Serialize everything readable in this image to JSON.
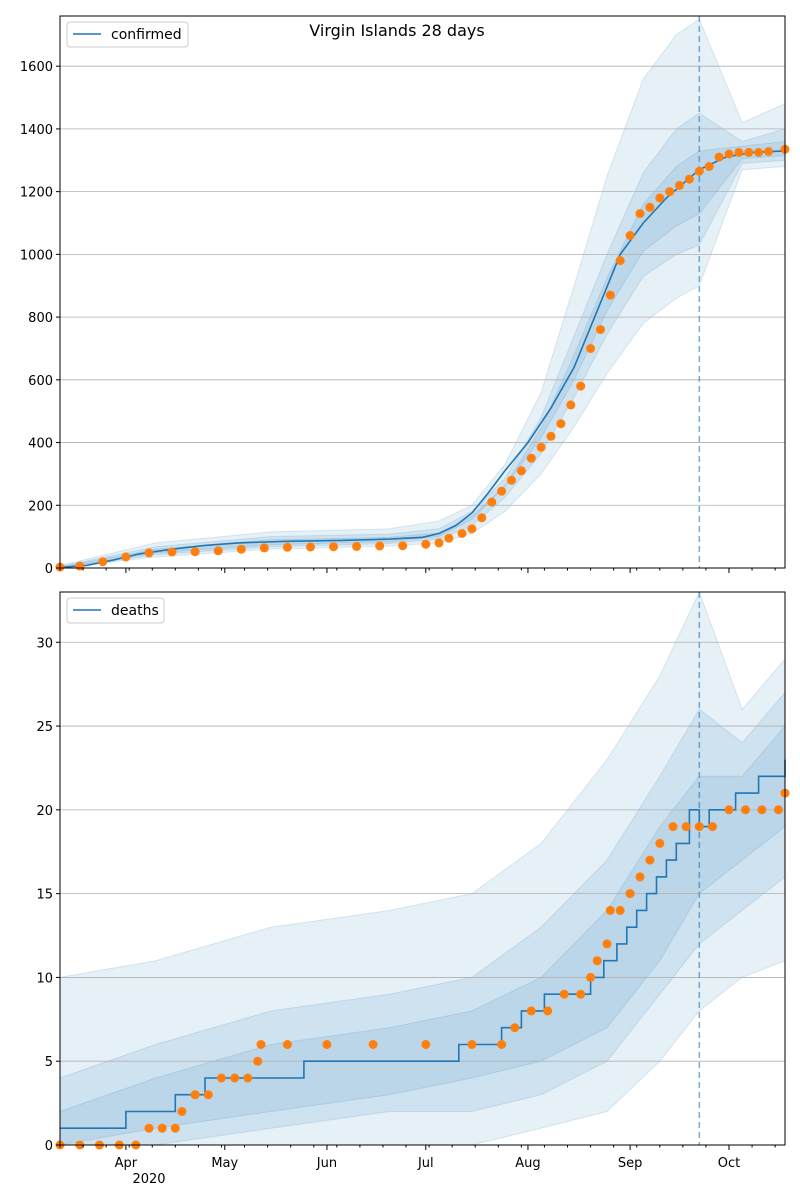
{
  "figure": {
    "title": "Virgin Islands 28 days",
    "x_tick_labels": [
      "Apr",
      "May",
      "Jun",
      "Jul",
      "Aug",
      "Sep",
      "Oct"
    ],
    "year_label": "2020"
  },
  "colors": {
    "line": "#1f77b4",
    "points": "#ff7f0e",
    "band": "#1f77b4",
    "grid": "#b0b0b0",
    "forecast_marker": "#1f77b4"
  },
  "chart_data": [
    {
      "type": "line",
      "legend_label": "confirmed",
      "legend_position": "upper left",
      "x_range": [
        "2020-03-12",
        "2020-10-18"
      ],
      "ylim": [
        0,
        1760
      ],
      "y_ticks": [
        0,
        200,
        400,
        600,
        800,
        1000,
        1200,
        1400,
        1600
      ],
      "grid": "y",
      "forecast_start": "2020-09-22",
      "series": [
        {
          "name": "confirmed",
          "kind": "model-median",
          "x": [
            "2020-03-12",
            "2020-03-20",
            "2020-03-28",
            "2020-04-05",
            "2020-04-15",
            "2020-04-25",
            "2020-05-05",
            "2020-05-20",
            "2020-06-05",
            "2020-06-20",
            "2020-06-30",
            "2020-07-05",
            "2020-07-10",
            "2020-07-15",
            "2020-07-20",
            "2020-07-25",
            "2020-08-01",
            "2020-08-08",
            "2020-08-15",
            "2020-08-22",
            "2020-08-29",
            "2020-09-05",
            "2020-09-12",
            "2020-09-22",
            "2020-09-30",
            "2020-10-08",
            "2020-10-18"
          ],
          "y": [
            2,
            8,
            25,
            45,
            60,
            72,
            80,
            85,
            88,
            92,
            98,
            110,
            135,
            175,
            240,
            310,
            400,
            510,
            640,
            820,
            1000,
            1100,
            1180,
            1270,
            1310,
            1325,
            1330
          ]
        },
        {
          "name": "observed",
          "kind": "points",
          "x": [
            "2020-03-12",
            "2020-03-18",
            "2020-03-25",
            "2020-04-01",
            "2020-04-08",
            "2020-04-15",
            "2020-04-22",
            "2020-04-29",
            "2020-05-06",
            "2020-05-13",
            "2020-05-20",
            "2020-05-27",
            "2020-06-03",
            "2020-06-10",
            "2020-06-17",
            "2020-06-24",
            "2020-07-01",
            "2020-07-05",
            "2020-07-08",
            "2020-07-12",
            "2020-07-15",
            "2020-07-18",
            "2020-07-21",
            "2020-07-24",
            "2020-07-27",
            "2020-07-30",
            "2020-08-02",
            "2020-08-05",
            "2020-08-08",
            "2020-08-11",
            "2020-08-14",
            "2020-08-17",
            "2020-08-20",
            "2020-08-23",
            "2020-08-26",
            "2020-08-29",
            "2020-09-01",
            "2020-09-04",
            "2020-09-07",
            "2020-09-10",
            "2020-09-13",
            "2020-09-16",
            "2020-09-19",
            "2020-09-22",
            "2020-09-25",
            "2020-09-28",
            "2020-10-01",
            "2020-10-04",
            "2020-10-07",
            "2020-10-10",
            "2020-10-13",
            "2020-10-18"
          ],
          "y": [
            3,
            6,
            20,
            35,
            48,
            51,
            52,
            55,
            60,
            64,
            66,
            67,
            68,
            69,
            70,
            71,
            76,
            80,
            95,
            110,
            125,
            160,
            210,
            245,
            280,
            310,
            350,
            385,
            420,
            460,
            520,
            580,
            700,
            760,
            870,
            980,
            1060,
            1130,
            1150,
            1180,
            1200,
            1220,
            1240,
            1265,
            1280,
            1310,
            1320,
            1325,
            1325,
            1325,
            1328,
            1335
          ]
        }
      ],
      "bands": [
        {
          "level": "outer",
          "x": [
            "2020-03-12",
            "2020-04-10",
            "2020-05-15",
            "2020-06-20",
            "2020-07-05",
            "2020-07-15",
            "2020-07-25",
            "2020-08-05",
            "2020-08-15",
            "2020-08-25",
            "2020-09-05",
            "2020-09-15",
            "2020-09-22",
            "2020-10-05",
            "2020-10-18"
          ],
          "lower": [
            0,
            35,
            60,
            70,
            80,
            110,
            180,
            300,
            450,
            620,
            780,
            860,
            900,
            1270,
            1280
          ],
          "upper": [
            8,
            80,
            115,
            125,
            150,
            200,
            330,
            560,
            900,
            1250,
            1560,
            1700,
            1750,
            1420,
            1480
          ]
        },
        {
          "level": "middle",
          "x": [
            "2020-03-12",
            "2020-04-10",
            "2020-05-15",
            "2020-06-20",
            "2020-07-05",
            "2020-07-15",
            "2020-07-25",
            "2020-08-05",
            "2020-08-15",
            "2020-08-25",
            "2020-09-05",
            "2020-09-15",
            "2020-09-22",
            "2020-10-05",
            "2020-10-18"
          ],
          "lower": [
            0,
            42,
            68,
            78,
            92,
            135,
            225,
            365,
            545,
            745,
            930,
            1000,
            1030,
            1290,
            1300
          ],
          "upper": [
            5,
            68,
            100,
            108,
            125,
            180,
            285,
            480,
            740,
            1000,
            1260,
            1400,
            1450,
            1360,
            1400
          ]
        },
        {
          "level": "inner",
          "x": [
            "2020-03-12",
            "2020-04-10",
            "2020-05-15",
            "2020-06-20",
            "2020-07-05",
            "2020-07-15",
            "2020-07-25",
            "2020-08-05",
            "2020-08-15",
            "2020-08-25",
            "2020-09-05",
            "2020-09-15",
            "2020-09-22",
            "2020-10-05",
            "2020-10-18"
          ],
          "lower": [
            0,
            48,
            74,
            84,
            100,
            155,
            260,
            415,
            600,
            820,
            1010,
            1090,
            1130,
            1305,
            1315
          ],
          "upper": [
            3,
            60,
            90,
            98,
            112,
            165,
            262,
            445,
            680,
            925,
            1160,
            1280,
            1330,
            1345,
            1360
          ]
        }
      ]
    },
    {
      "type": "line",
      "legend_label": "deaths",
      "legend_position": "upper left",
      "x_range": [
        "2020-03-12",
        "2020-10-18"
      ],
      "ylim": [
        0,
        33
      ],
      "y_ticks": [
        0,
        5,
        10,
        15,
        20,
        25,
        30
      ],
      "grid": "y",
      "forecast_start": "2020-09-22",
      "series": [
        {
          "name": "deaths",
          "kind": "model-median-step",
          "x": [
            "2020-03-12",
            "2020-04-01",
            "2020-04-16",
            "2020-04-25",
            "2020-05-10",
            "2020-05-25",
            "2020-07-11",
            "2020-07-24",
            "2020-07-30",
            "2020-08-06",
            "2020-08-20",
            "2020-08-24",
            "2020-08-28",
            "2020-08-31",
            "2020-09-03",
            "2020-09-06",
            "2020-09-09",
            "2020-09-12",
            "2020-09-15",
            "2020-09-19",
            "2020-09-22",
            "2020-09-25",
            "2020-10-03",
            "2020-10-10",
            "2020-10-18"
          ],
          "y": [
            1,
            2,
            3,
            4,
            4,
            5,
            6,
            7,
            8,
            9,
            10,
            11,
            12,
            13,
            14,
            15,
            16,
            17,
            18,
            20,
            19,
            20,
            21,
            22,
            23
          ]
        },
        {
          "name": "observed",
          "kind": "points",
          "x": [
            "2020-03-12",
            "2020-03-18",
            "2020-03-24",
            "2020-03-30",
            "2020-04-04",
            "2020-04-08",
            "2020-04-12",
            "2020-04-16",
            "2020-04-18",
            "2020-04-22",
            "2020-04-26",
            "2020-04-30",
            "2020-05-04",
            "2020-05-08",
            "2020-05-11",
            "2020-05-12",
            "2020-05-20",
            "2020-06-01",
            "2020-06-15",
            "2020-07-01",
            "2020-07-15",
            "2020-07-24",
            "2020-07-28",
            "2020-08-02",
            "2020-08-07",
            "2020-08-12",
            "2020-08-17",
            "2020-08-20",
            "2020-08-22",
            "2020-08-25",
            "2020-08-26",
            "2020-08-29",
            "2020-09-01",
            "2020-09-04",
            "2020-09-07",
            "2020-09-10",
            "2020-09-14",
            "2020-09-18",
            "2020-09-22",
            "2020-09-26",
            "2020-10-01",
            "2020-10-06",
            "2020-10-11",
            "2020-10-16",
            "2020-10-18"
          ],
          "y": [
            0,
            0,
            0,
            0,
            0,
            1,
            1,
            1,
            2,
            3,
            3,
            4,
            4,
            4,
            5,
            6,
            6,
            6,
            6,
            6,
            6,
            6,
            7,
            8,
            8,
            9,
            9,
            10,
            11,
            12,
            14,
            14,
            15,
            16,
            17,
            18,
            19,
            19,
            19,
            19,
            20,
            20,
            20,
            20,
            21
          ]
        }
      ],
      "bands": [
        {
          "level": "outer",
          "x": [
            "2020-03-12",
            "2020-04-10",
            "2020-05-15",
            "2020-06-20",
            "2020-07-15",
            "2020-08-05",
            "2020-08-25",
            "2020-09-10",
            "2020-09-22",
            "2020-10-05",
            "2020-10-18"
          ],
          "lower": [
            0,
            0,
            0,
            0,
            0,
            1,
            2,
            5,
            8,
            10,
            11
          ],
          "upper": [
            10,
            11,
            13,
            14,
            15,
            18,
            23,
            28,
            33,
            26,
            29
          ]
        },
        {
          "level": "middle",
          "x": [
            "2020-03-12",
            "2020-04-10",
            "2020-05-15",
            "2020-06-20",
            "2020-07-15",
            "2020-08-05",
            "2020-08-25",
            "2020-09-10",
            "2020-09-22",
            "2020-10-05",
            "2020-10-18"
          ],
          "lower": [
            0,
            0,
            1,
            2,
            2,
            3,
            5,
            9,
            12,
            14,
            16
          ],
          "upper": [
            4,
            6,
            8,
            9,
            10,
            13,
            17,
            22,
            26,
            24,
            27
          ]
        },
        {
          "level": "inner",
          "x": [
            "2020-03-12",
            "2020-04-10",
            "2020-05-15",
            "2020-06-20",
            "2020-07-15",
            "2020-08-05",
            "2020-08-25",
            "2020-09-10",
            "2020-09-22",
            "2020-10-05",
            "2020-10-18"
          ],
          "lower": [
            0,
            1,
            2,
            3,
            4,
            5,
            7,
            11,
            15,
            17,
            19
          ],
          "upper": [
            2,
            4,
            6,
            7,
            8,
            10,
            14,
            19,
            22,
            22,
            25
          ]
        }
      ]
    }
  ]
}
